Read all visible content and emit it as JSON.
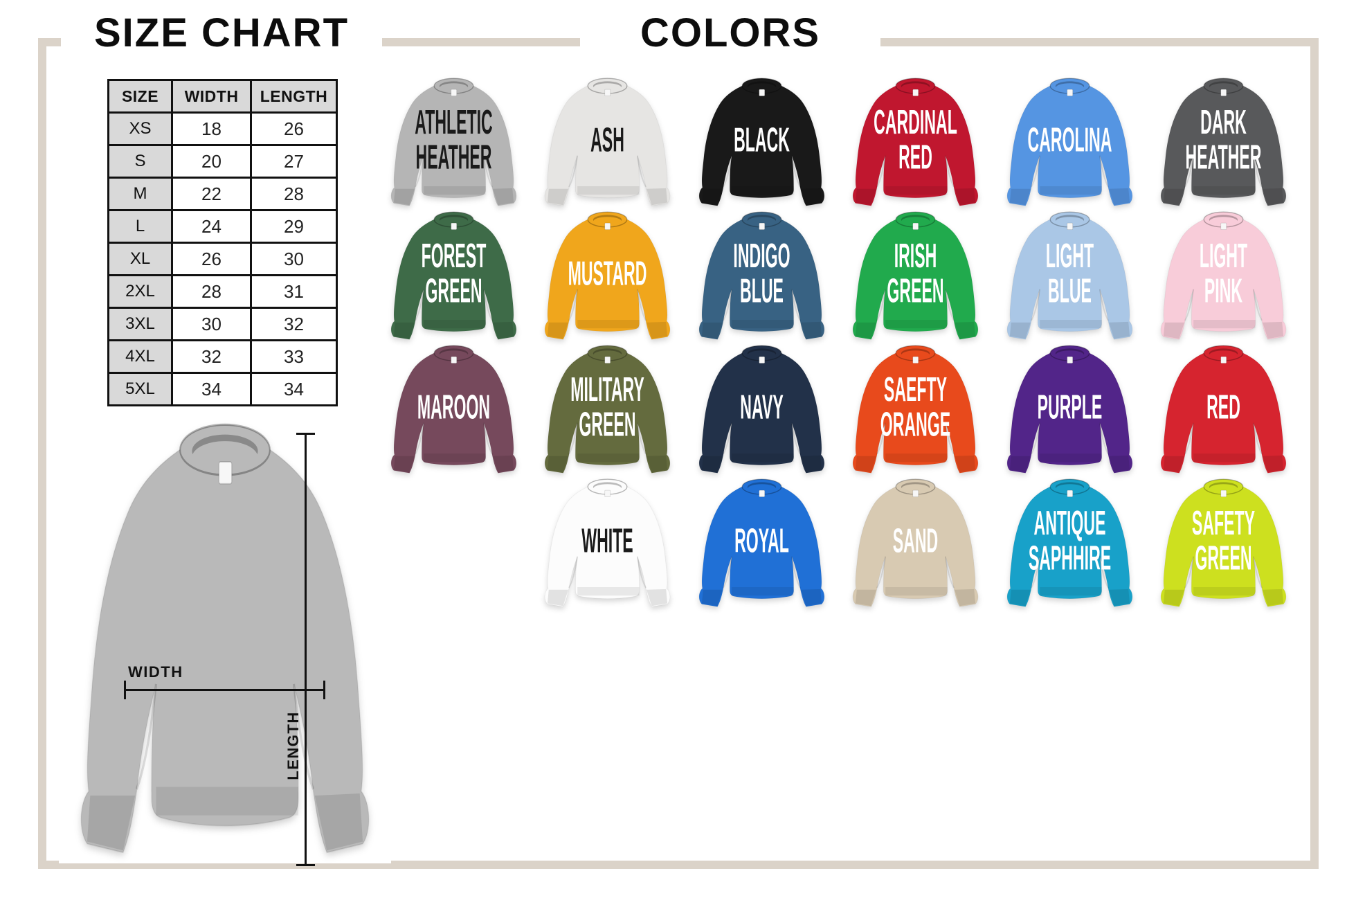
{
  "frame": {
    "color": "#dbd3c9"
  },
  "titles": {
    "size_chart": "SIZE CHART",
    "colors": "COLORS"
  },
  "size_table": {
    "headers": [
      "SIZE",
      "WIDTH",
      "LENGTH"
    ],
    "rows": [
      [
        "XS",
        "18",
        "26"
      ],
      [
        "S",
        "20",
        "27"
      ],
      [
        "M",
        "22",
        "28"
      ],
      [
        "L",
        "24",
        "29"
      ],
      [
        "XL",
        "26",
        "30"
      ],
      [
        "2XL",
        "28",
        "31"
      ],
      [
        "3XL",
        "30",
        "32"
      ],
      [
        "4XL",
        "32",
        "33"
      ],
      [
        "5XL",
        "34",
        "34"
      ]
    ]
  },
  "measurement": {
    "width_label": "WIDTH",
    "length_label": "LENGTH",
    "shirt_color": "#b9b9b9"
  },
  "colors_grid": {
    "shirts": [
      {
        "name": "Athletic Heather",
        "lines": [
          "ATHLETIC",
          "HEATHER"
        ],
        "fill": "#b5b5b5",
        "text_color": "#1a1a1a",
        "row": 0,
        "col": 0
      },
      {
        "name": "Ash",
        "lines": [
          "ASH"
        ],
        "fill": "#e6e5e3",
        "text_color": "#1a1a1a",
        "row": 0,
        "col": 1
      },
      {
        "name": "Black",
        "lines": [
          "BLACK"
        ],
        "fill": "#191919",
        "text_color": "#ffffff",
        "row": 0,
        "col": 2
      },
      {
        "name": "Cardinal Red",
        "lines": [
          "CARDINAL",
          "RED"
        ],
        "fill": "#c0172f",
        "text_color": "#ffffff",
        "row": 0,
        "col": 3
      },
      {
        "name": "Carolina",
        "lines": [
          "CAROLINA"
        ],
        "fill": "#5595e2",
        "text_color": "#ffffff",
        "row": 0,
        "col": 4
      },
      {
        "name": "Dark Heather",
        "lines": [
          "DARK",
          "HEATHER"
        ],
        "fill": "#58595b",
        "text_color": "#ffffff",
        "row": 0,
        "col": 5
      },
      {
        "name": "Forest Green",
        "lines": [
          "FOREST",
          "GREEN"
        ],
        "fill": "#3e6b48",
        "text_color": "#ffffff",
        "row": 1,
        "col": 0
      },
      {
        "name": "Mustard",
        "lines": [
          "MUSTARD"
        ],
        "fill": "#f0a61c",
        "text_color": "#ffffff",
        "row": 1,
        "col": 1
      },
      {
        "name": "Indigo Blue",
        "lines": [
          "INDIGO",
          "BLUE"
        ],
        "fill": "#386283",
        "text_color": "#ffffff",
        "row": 1,
        "col": 2
      },
      {
        "name": "Irish Green",
        "lines": [
          "IRISH",
          "GREEN"
        ],
        "fill": "#21aa4d",
        "text_color": "#ffffff",
        "row": 1,
        "col": 3
      },
      {
        "name": "Light Blue",
        "lines": [
          "LIGHT",
          "BLUE"
        ],
        "fill": "#aac7e6",
        "text_color": "#ffffff",
        "row": 1,
        "col": 4
      },
      {
        "name": "Light Pink",
        "lines": [
          "LIGHT",
          "PINK"
        ],
        "fill": "#f8ccd9",
        "text_color": "#ffffff",
        "row": 1,
        "col": 5
      },
      {
        "name": "Maroon",
        "lines": [
          "MAROON"
        ],
        "fill": "#76495c",
        "text_color": "#ffffff",
        "row": 2,
        "col": 0
      },
      {
        "name": "Military Green",
        "lines": [
          "MILITARY",
          "GREEN"
        ],
        "fill": "#646b3e",
        "text_color": "#ffffff",
        "row": 2,
        "col": 1
      },
      {
        "name": "Navy",
        "lines": [
          "NAVY"
        ],
        "fill": "#223149",
        "text_color": "#ffffff",
        "row": 2,
        "col": 2
      },
      {
        "name": "Saefty Orange",
        "lines": [
          "SAEFTY",
          "ORANGE"
        ],
        "fill": "#e84a1c",
        "text_color": "#ffffff",
        "row": 2,
        "col": 3
      },
      {
        "name": "Purple",
        "lines": [
          "PURPLE"
        ],
        "fill": "#522589",
        "text_color": "#ffffff",
        "row": 2,
        "col": 4
      },
      {
        "name": "Red",
        "lines": [
          "RED"
        ],
        "fill": "#d6242f",
        "text_color": "#ffffff",
        "row": 2,
        "col": 5
      },
      {
        "name": "White",
        "lines": [
          "WHITE"
        ],
        "fill": "#fcfcfc",
        "text_color": "#1a1a1a",
        "row": 3,
        "col": 1
      },
      {
        "name": "Royal",
        "lines": [
          "ROYAL"
        ],
        "fill": "#2070d6",
        "text_color": "#ffffff",
        "row": 3,
        "col": 2
      },
      {
        "name": "Sand",
        "lines": [
          "SAND"
        ],
        "fill": "#d8cab2",
        "text_color": "#ffffff",
        "row": 3,
        "col": 3
      },
      {
        "name": "Antique Saphhire",
        "lines": [
          "ANTIQUE",
          "SAPHHIRE"
        ],
        "fill": "#18a1c9",
        "text_color": "#ffffff",
        "row": 3,
        "col": 4
      },
      {
        "name": "Safety Green",
        "lines": [
          "SAFETY",
          "GREEN"
        ],
        "fill": "#cde01f",
        "text_color": "#ffffff",
        "row": 3,
        "col": 5
      }
    ]
  }
}
